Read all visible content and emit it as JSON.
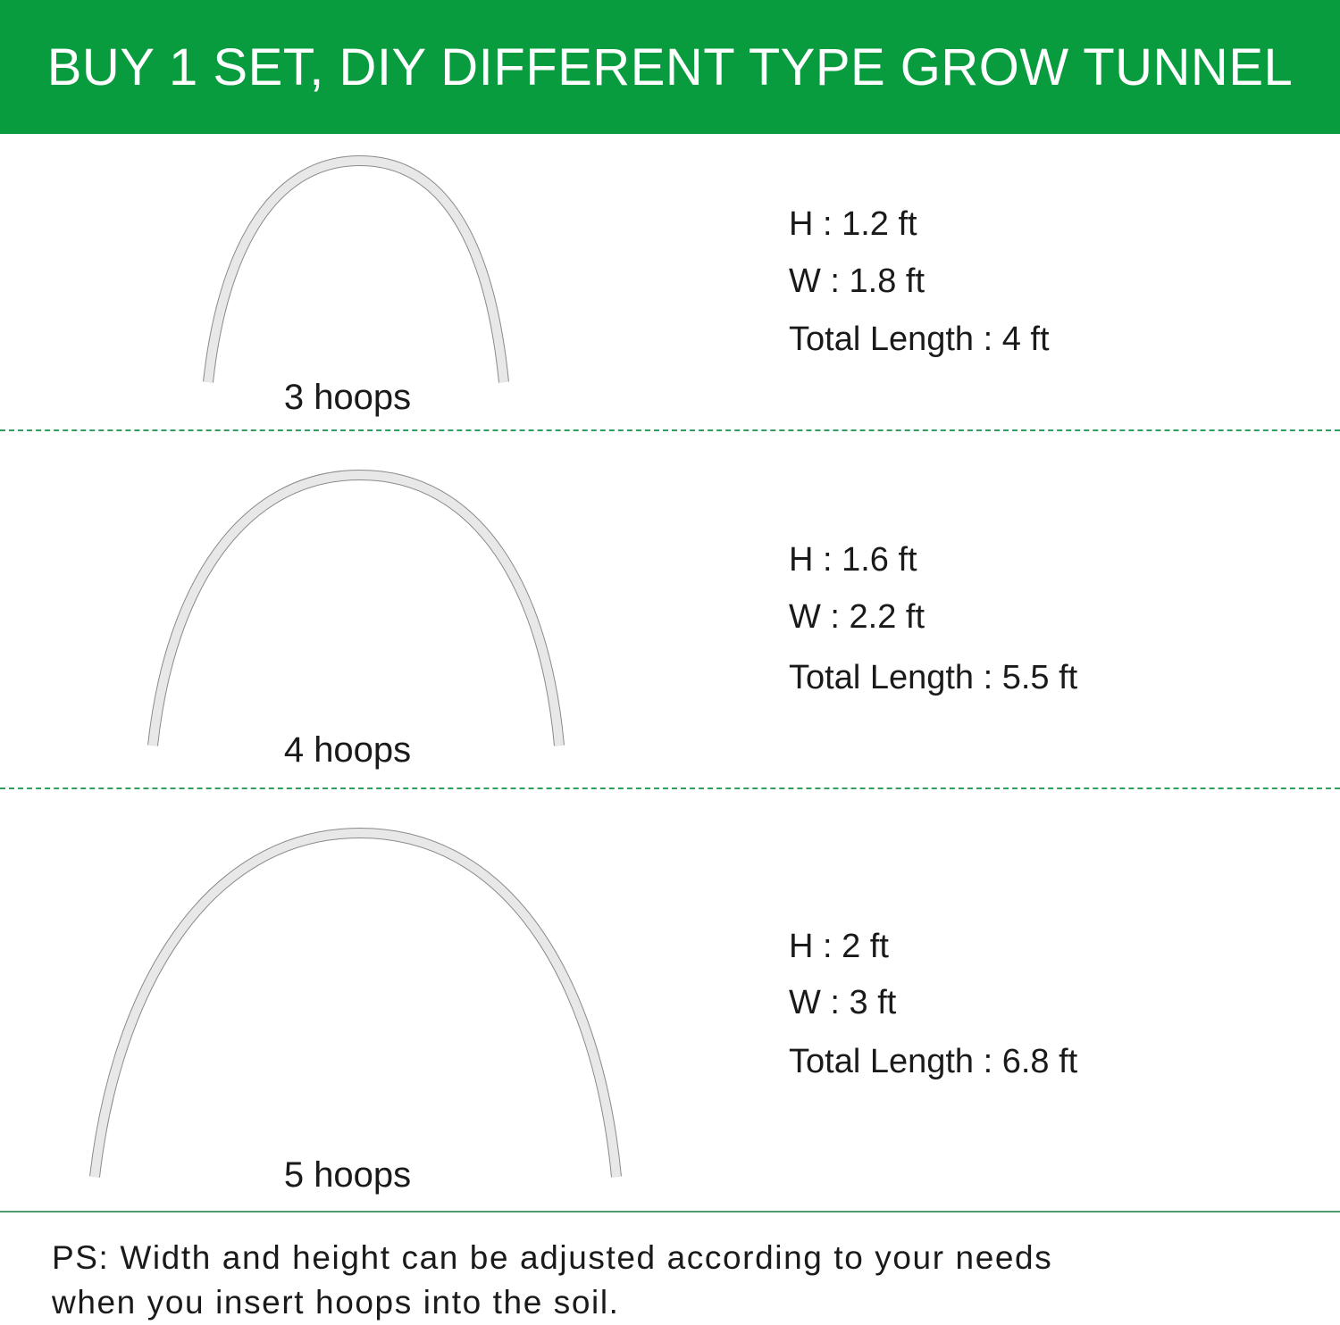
{
  "header": {
    "title": "BUY 1 SET, DIY DIFFERENT TYPE GROW TUNNEL",
    "background_color": "#089c3f"
  },
  "configurations": [
    {
      "label": "3 hoops",
      "height": "H : 1.2 ft",
      "width": "W : 1.8 ft",
      "total_length": "Total Length : 4 ft"
    },
    {
      "label": "4 hoops",
      "height": "H : 1.6 ft",
      "width": "W : 2.2 ft",
      "total_length": "Total Length : 5.5 ft"
    },
    {
      "label": "5 hoops",
      "height": "H : 2 ft",
      "width": "W : 3 ft",
      "total_length": "Total Length : 6.8 ft"
    }
  ],
  "footer": {
    "line1": "PS: Width and height can be adjusted according to your needs",
    "line2": "when you insert hoops into the soil."
  },
  "colors": {
    "divider": "#2f9e5f",
    "hoop": "#e6e6e6"
  }
}
